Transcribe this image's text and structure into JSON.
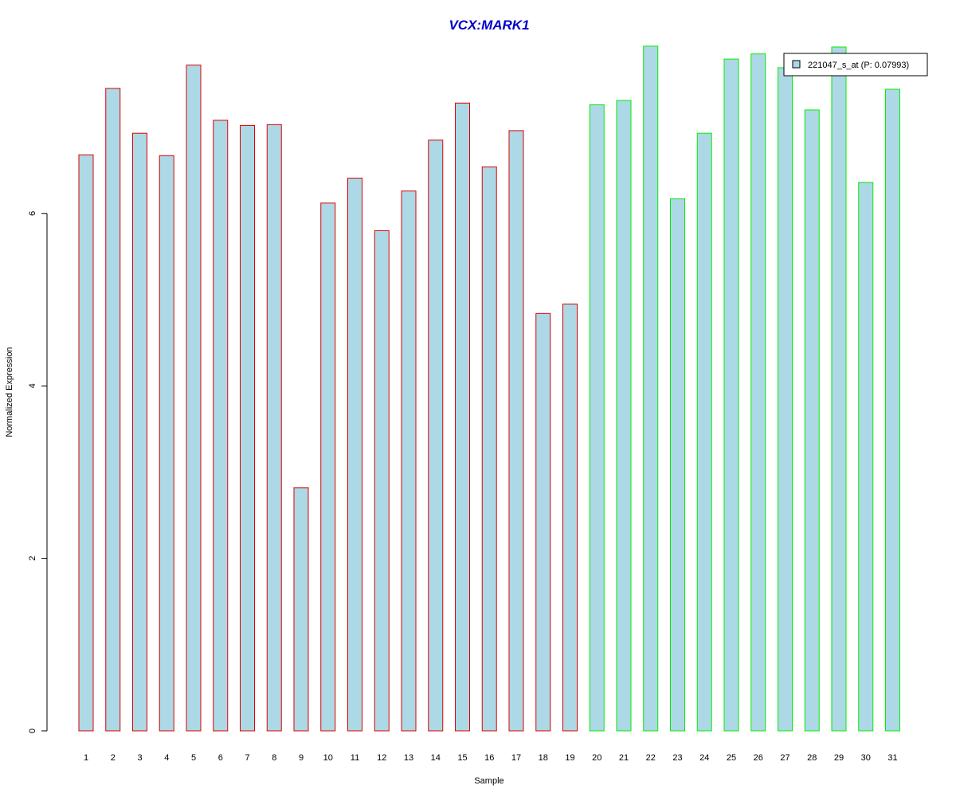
{
  "chart_data": {
    "type": "bar",
    "title": "VCX:MARK1",
    "xlabel": "Sample",
    "ylabel": "Normalized Expression",
    "ylim": [
      0,
      8
    ],
    "yticks": [
      0,
      2,
      4,
      6
    ],
    "grid": false,
    "legend_position": "top-right",
    "categories": [
      "1",
      "2",
      "3",
      "4",
      "5",
      "6",
      "7",
      "8",
      "9",
      "10",
      "11",
      "12",
      "13",
      "14",
      "15",
      "16",
      "17",
      "18",
      "19",
      "20",
      "21",
      "22",
      "23",
      "24",
      "25",
      "26",
      "27",
      "28",
      "29",
      "30",
      "31"
    ],
    "series": [
      {
        "name": "221047_s_at (P: 0.07993)",
        "values": [
          6.68,
          7.45,
          6.93,
          6.67,
          7.72,
          7.08,
          7.02,
          7.03,
          2.82,
          6.12,
          6.41,
          5.8,
          6.26,
          6.85,
          7.28,
          6.54,
          6.96,
          4.84,
          4.95,
          7.26,
          7.31,
          7.94,
          6.17,
          6.93,
          7.79,
          7.85,
          7.69,
          7.2,
          7.93,
          6.36,
          7.44
        ]
      }
    ],
    "group_sizes": [
      19,
      12
    ]
  },
  "colors": {
    "title": "#0000CC",
    "bar_fill": "#ADD8E6",
    "group1_border": "#DD0000",
    "group2_border": "#00EE00",
    "axis": "#000000"
  }
}
